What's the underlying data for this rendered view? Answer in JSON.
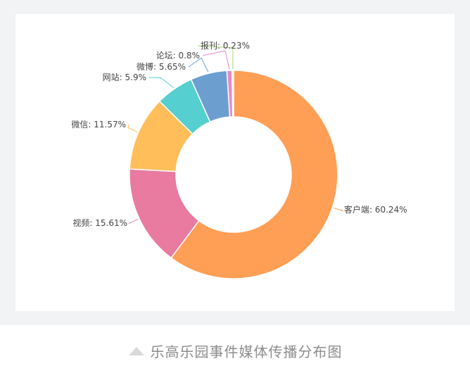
{
  "chart_data": {
    "type": "pie",
    "style": "donut",
    "title": "",
    "slices": [
      {
        "name": "客户端",
        "value": 60.24,
        "label": "客户端: 60.24%",
        "color": "#ff9e55"
      },
      {
        "name": "视频",
        "value": 15.61,
        "label": "视频: 15.61%",
        "color": "#e97aa0"
      },
      {
        "name": "微信",
        "value": 11.57,
        "label": "微信: 11.57%",
        "color": "#ffbe5a"
      },
      {
        "name": "网站",
        "value": 5.9,
        "label": "网站: 5.9%",
        "color": "#55cfcf"
      },
      {
        "name": "微博",
        "value": 5.65,
        "label": "微博: 5.65%",
        "color": "#6c9fd0"
      },
      {
        "name": "论坛",
        "value": 0.8,
        "label": "论坛: 0.8%",
        "color": "#e58ac7"
      },
      {
        "name": "报刊",
        "value": 0.23,
        "label": "报刊: 0.23%",
        "color": "#a8d46f"
      }
    ],
    "legend": "none"
  },
  "caption": {
    "icon": "triangle-icon",
    "text": "乐高乐园事件媒体传播分布图"
  }
}
